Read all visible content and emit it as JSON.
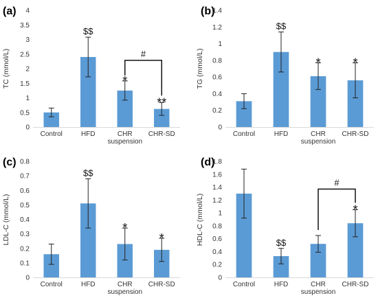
{
  "chart_data": [
    {
      "type": "bar",
      "panel_label": "(a)",
      "ylabel": "TC (mmol/L)",
      "ylim": [
        0,
        4
      ],
      "yticks": [
        "0",
        "0.5",
        "1",
        "1.5",
        "2",
        "2.5",
        "3",
        "3.5",
        "4"
      ],
      "categories": [
        [
          "Control"
        ],
        [
          "HFD"
        ],
        [
          "CHR",
          "suspension"
        ],
        [
          "CHR-SD"
        ]
      ],
      "values": [
        0.5,
        2.4,
        1.25,
        0.62
      ],
      "errors": [
        0.15,
        0.68,
        0.33,
        0.22
      ],
      "annotations": [
        "",
        "$$",
        "*",
        "**"
      ],
      "bracket": {
        "from": 2,
        "to": 3,
        "label": "#"
      },
      "bar_color": "#5b9bd5"
    },
    {
      "type": "bar",
      "panel_label": "(b)",
      "ylabel": "TG (mmol/L)",
      "ylim": [
        0,
        1.4
      ],
      "yticks": [
        "0",
        "0.2",
        "0.4",
        "0.6",
        "0.8",
        "1",
        "1.2",
        "1.4"
      ],
      "categories": [
        [
          "Control"
        ],
        [
          "HFD"
        ],
        [
          "CHR",
          "suspension"
        ],
        [
          "CHR-SD"
        ]
      ],
      "values": [
        0.31,
        0.9,
        0.61,
        0.56
      ],
      "errors": [
        0.09,
        0.24,
        0.16,
        0.21
      ],
      "annotations": [
        "",
        "$$",
        "*",
        "*"
      ],
      "bar_color": "#5b9bd5"
    },
    {
      "type": "bar",
      "panel_label": "(c)",
      "ylabel": "LDL-C (mmol/L)",
      "ylim": [
        0,
        0.8
      ],
      "yticks": [
        "0",
        "0.1",
        "0.2",
        "0.3",
        "0.4",
        "0.5",
        "0.6",
        "0.7",
        "0.8"
      ],
      "categories": [
        [
          "Control"
        ],
        [
          "HFD"
        ],
        [
          "CHR",
          "suspension"
        ],
        [
          "CHR-SD"
        ]
      ],
      "values": [
        0.16,
        0.51,
        0.23,
        0.19
      ],
      "errors": [
        0.07,
        0.17,
        0.11,
        0.08
      ],
      "annotations": [
        "",
        "$$",
        "*",
        "*"
      ],
      "bar_color": "#5b9bd5"
    },
    {
      "type": "bar",
      "panel_label": "(d)",
      "ylabel": "HDL-C (mmol/L)",
      "ylim": [
        0,
        1.8
      ],
      "yticks": [
        "0",
        "0.2",
        "0.4",
        "0.6",
        "0.8",
        "1",
        "1.2",
        "1.4",
        "1.6",
        "1.8"
      ],
      "categories": [
        [
          "Control"
        ],
        [
          "HFD"
        ],
        [
          "CHR",
          "suspension"
        ],
        [
          "CHR-SD"
        ]
      ],
      "values": [
        1.3,
        0.33,
        0.52,
        0.84
      ],
      "errors": [
        0.38,
        0.12,
        0.13,
        0.21
      ],
      "annotations": [
        "",
        "$$",
        "",
        "*"
      ],
      "bracket": {
        "from": 2,
        "to": 3,
        "label": "#"
      },
      "bar_color": "#5b9bd5"
    }
  ]
}
